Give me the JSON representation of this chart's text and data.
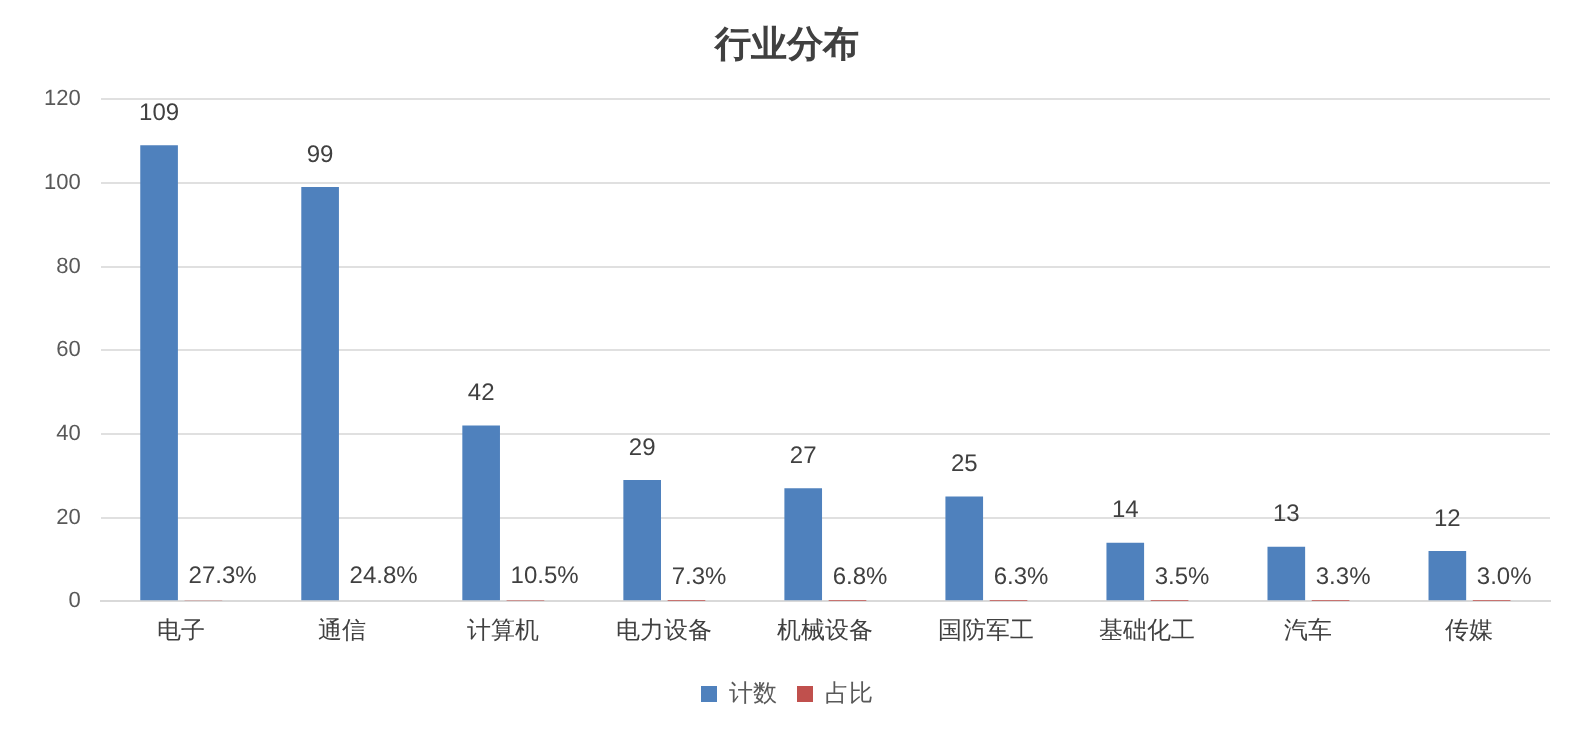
{
  "chart_data": {
    "type": "bar",
    "title": "行业分布",
    "categories": [
      "电子",
      "通信",
      "计算机",
      "电力设备",
      "机械设备",
      "国防军工",
      "基础化工",
      "汽车",
      "传媒"
    ],
    "series": [
      {
        "name": "计数",
        "color": "#4f81bd",
        "values": [
          109,
          99,
          42,
          29,
          27,
          25,
          14,
          13,
          12
        ],
        "value_labels": [
          "109",
          "99",
          "42",
          "29",
          "27",
          "25",
          "14",
          "13",
          "12"
        ]
      },
      {
        "name": "占比",
        "color": "#c0504d",
        "values": [
          0.273,
          0.248,
          0.105,
          0.073,
          0.068,
          0.063,
          0.035,
          0.033,
          0.03
        ],
        "value_labels": [
          "27.3%",
          "24.8%",
          "10.5%",
          "7.3%",
          "6.8%",
          "6.3%",
          "3.5%",
          "3.3%",
          "3.0%"
        ]
      }
    ],
    "ylim": [
      0,
      120
    ],
    "yticks": [
      0,
      20,
      40,
      60,
      80,
      100,
      120
    ],
    "grid": "y",
    "legend": "bottom"
  }
}
